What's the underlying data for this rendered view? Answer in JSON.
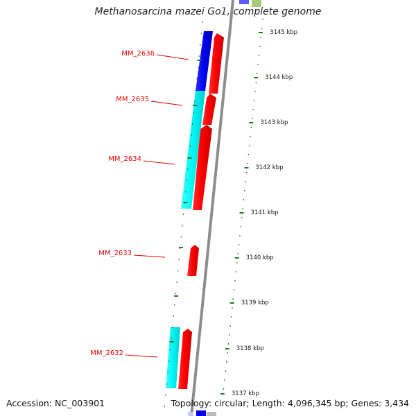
{
  "title": "Methanosarcina mazei Go1, complete genome",
  "accession": "Accession: NC_003901",
  "topology": "Topology: circular; Length: 4,096,345 bp; Genes: 3,434",
  "colors": {
    "forward_gene": "#ff0000",
    "reverse_cds_blue": "#0000ee",
    "reverse_cds_cyan": "#00ffff",
    "backbone": "#888888",
    "ticks": "#1e7a1e",
    "label": "#e00000"
  },
  "kbp_labels": [
    "3145 kbp",
    "3144 kbp",
    "3143 kbp",
    "3142 kbp",
    "3141 kbp",
    "3140 kbp",
    "3139 kbp",
    "3138 kbp",
    "3137 kbp"
  ],
  "gene_labels": [
    "MM_2636",
    "MM_2635",
    "MM_2634",
    "MM_2633",
    "MM_2632"
  ]
}
